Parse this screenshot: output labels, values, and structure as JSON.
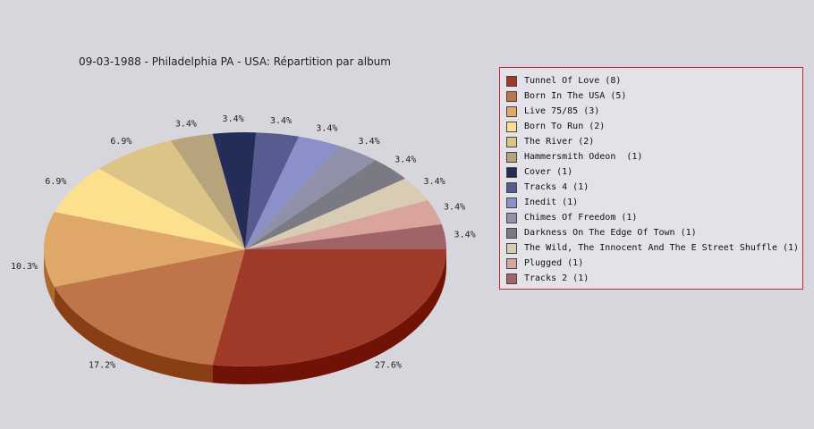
{
  "title": "09-03-1988 - Philadelphia PA - USA:  Répartition par album",
  "chart_data": {
    "type": "pie",
    "title": "09-03-1988 - Philadelphia PA - USA:  Répartition par album",
    "legend_position": "right",
    "slices": [
      {
        "label": "Tunnel Of Love (8)",
        "value": 8,
        "pct": "27.6%",
        "color": "#a03a28",
        "side": "#701206"
      },
      {
        "label": "Born In The USA (5)",
        "value": 5,
        "pct": "17.2%",
        "color": "#c0744a",
        "side": "#8a3e16"
      },
      {
        "label": "Live 75/85 (3)",
        "value": 3,
        "pct": "10.3%",
        "color": "#e0a868",
        "side": "#aa6a2c"
      },
      {
        "label": "Born To Run (2)",
        "value": 2,
        "pct": "6.9%",
        "color": "#fde08e",
        "side": "#c4a55c"
      },
      {
        "label": "The River (2)",
        "value": 2,
        "pct": "6.9%",
        "color": "#dcc486",
        "side": "#a68e50"
      },
      {
        "label": "Hammersmith Odeon  (1)",
        "value": 1,
        "pct": "3.4%",
        "color": "#b8a47c",
        "side": "#847048"
      },
      {
        "label": "Cover (1)",
        "value": 1,
        "pct": "3.4%",
        "color": "#242c58",
        "side": "#10163a"
      },
      {
        "label": "Tracks 4 (1)",
        "value": 1,
        "pct": "3.4%",
        "color": "#565c90",
        "side": "#343860"
      },
      {
        "label": "Inedit (1)",
        "value": 1,
        "pct": "3.4%",
        "color": "#8c90c8",
        "side": "#5e6090"
      },
      {
        "label": "Chimes Of Freedom (1)",
        "value": 1,
        "pct": "3.4%",
        "color": "#9090a8",
        "side": "#626278"
      },
      {
        "label": "Darkness On The Edge Of Town (1)",
        "value": 1,
        "pct": "3.4%",
        "color": "#7a7a84",
        "side": "#4e4e58"
      },
      {
        "label": "The Wild, The Innocent And The E Street Shuffle (1)",
        "value": 1,
        "pct": "3.4%",
        "color": "#d8ccb4",
        "side": "#a89c84"
      },
      {
        "label": "Plugged (1)",
        "value": 1,
        "pct": "3.4%",
        "color": "#d8a49c",
        "side": "#a8746c"
      },
      {
        "label": "Tracks 2 (1)",
        "value": 1,
        "pct": "3.4%",
        "color": "#a06468",
        "side": "#703a3e"
      }
    ]
  }
}
